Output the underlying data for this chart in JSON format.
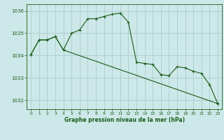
{
  "title": "Graphe pression niveau de la mer (hPa)",
  "background_color": "#cde8e8",
  "grid_color": "#aacccc",
  "line_color": "#1a5c1a",
  "xlim": [
    -0.5,
    23.5
  ],
  "ylim": [
    1031.6,
    1036.3
  ],
  "yticks": [
    1032,
    1033,
    1034,
    1035,
    1036
  ],
  "xticks": [
    0,
    1,
    2,
    3,
    4,
    5,
    6,
    7,
    8,
    9,
    10,
    11,
    12,
    13,
    14,
    15,
    16,
    17,
    18,
    19,
    20,
    21,
    22,
    23
  ],
  "series1_x": [
    0,
    1,
    2,
    3,
    4,
    5,
    6,
    7,
    8,
    9,
    10,
    11,
    12,
    13,
    14,
    15,
    16,
    17,
    18,
    19,
    20,
    21,
    22,
    23
  ],
  "series1_y": [
    1034.05,
    1034.7,
    1034.7,
    1034.85,
    1034.25,
    1035.0,
    1035.15,
    1035.65,
    1035.65,
    1035.75,
    1035.85,
    1035.9,
    1035.5,
    1033.7,
    1033.65,
    1033.6,
    1033.15,
    1033.1,
    1033.5,
    1033.45,
    1033.3,
    1033.2,
    1032.7,
    1031.85
  ],
  "series2_x": [
    0,
    1,
    2,
    3,
    4,
    23
  ],
  "series2_y": [
    1034.05,
    1034.7,
    1034.7,
    1034.85,
    1034.25,
    1031.85
  ]
}
